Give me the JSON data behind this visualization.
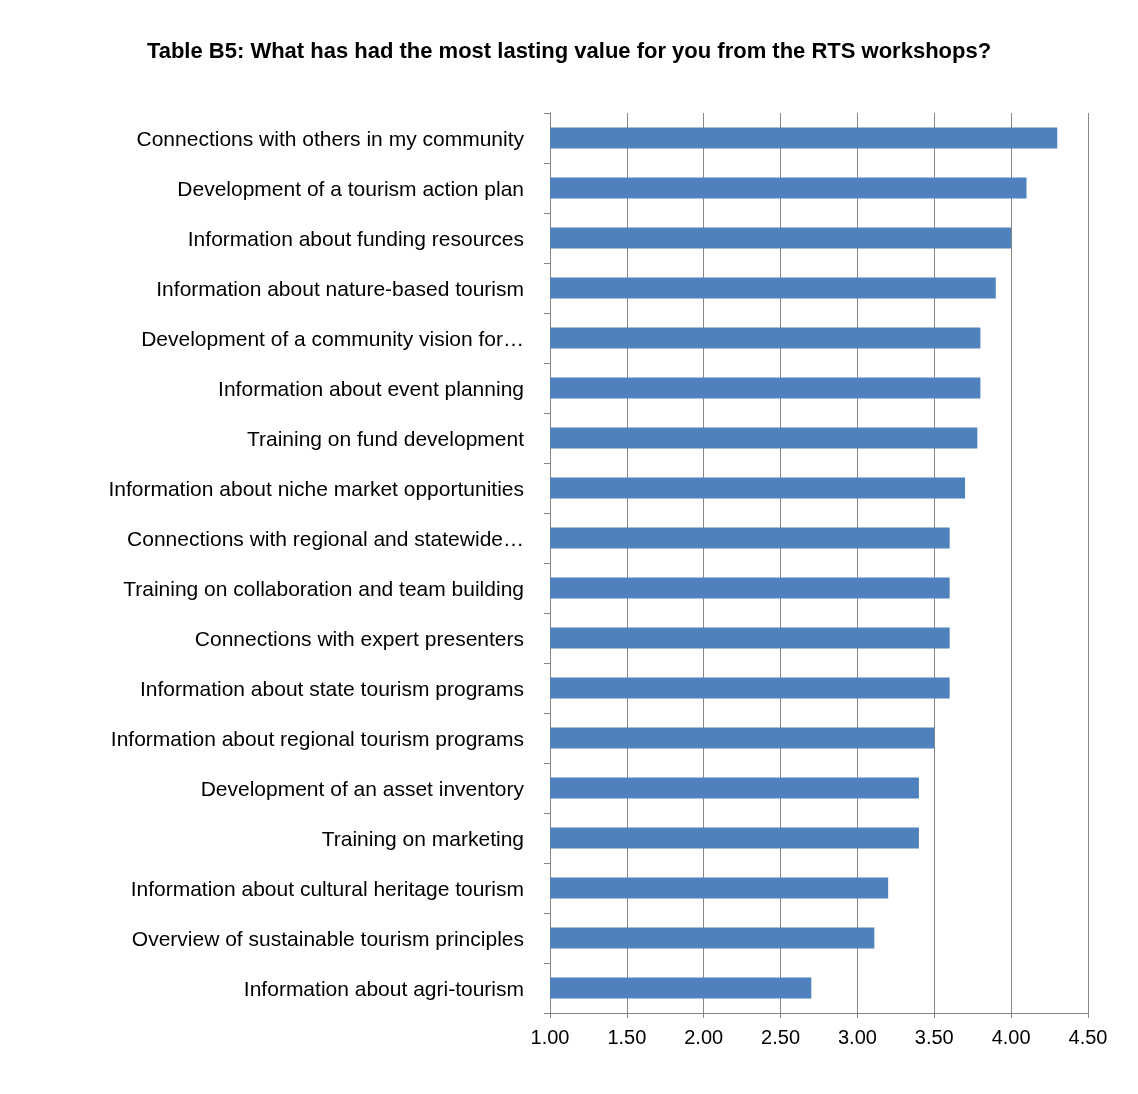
{
  "chart_data": {
    "type": "bar",
    "orientation": "horizontal",
    "title": "Table B5: What has had the most lasting value for you from the RTS workshops?",
    "categories": [
      "Connections with others in my community",
      "Development of a tourism action plan",
      "Information about funding resources",
      "Information about nature-based tourism",
      "Development of a community vision for…",
      "Information about event planning",
      "Training on fund development",
      "Information about niche market opportunities",
      "Connections with regional and statewide…",
      "Training on collaboration and team building",
      "Connections with expert presenters",
      "Information about state tourism programs",
      "Information about regional tourism programs",
      "Development of an asset inventory",
      "Training on marketing",
      "Information about cultural heritage tourism",
      "Overview of sustainable tourism principles",
      "Information about agri-tourism"
    ],
    "values": [
      4.3,
      4.1,
      4.0,
      3.9,
      3.8,
      3.8,
      3.78,
      3.7,
      3.6,
      3.6,
      3.6,
      3.6,
      3.5,
      3.4,
      3.4,
      3.2,
      3.11,
      2.7
    ],
    "color": "#4f81bd",
    "xlim": [
      1,
      4.5
    ],
    "xticks": [
      {
        "value": 1,
        "label": "1.00"
      },
      {
        "value": 1.5,
        "label": "1.50"
      },
      {
        "value": 2,
        "label": "2.00"
      },
      {
        "value": 2.5,
        "label": "2.50"
      },
      {
        "value": 3,
        "label": "3.00"
      },
      {
        "value": 3.5,
        "label": "3.50"
      },
      {
        "value": 4,
        "label": "4.00"
      },
      {
        "value": 4.5,
        "label": "4.50"
      }
    ],
    "grid": "x"
  }
}
